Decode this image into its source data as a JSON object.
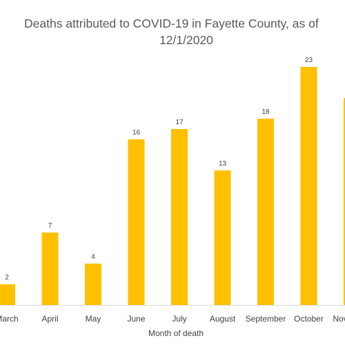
{
  "chart_data": {
    "type": "bar",
    "title_line1": "Deaths attributed to COVID-19 in Fayette County, as of",
    "title_line2": "12/1/2020",
    "xlabel": "Month of death",
    "ylabel": "",
    "categories": [
      "March",
      "April",
      "May",
      "June",
      "July",
      "August",
      "September",
      "October",
      "November"
    ],
    "values": [
      2,
      7,
      4,
      16,
      17,
      13,
      18,
      23,
      20
    ],
    "data_labels": [
      "2",
      "7",
      "4",
      "16",
      "17",
      "13",
      "18",
      "23",
      ""
    ],
    "ylim": [
      0,
      25
    ],
    "grid": false,
    "legend": "none",
    "bar_color": "#FFC000"
  }
}
